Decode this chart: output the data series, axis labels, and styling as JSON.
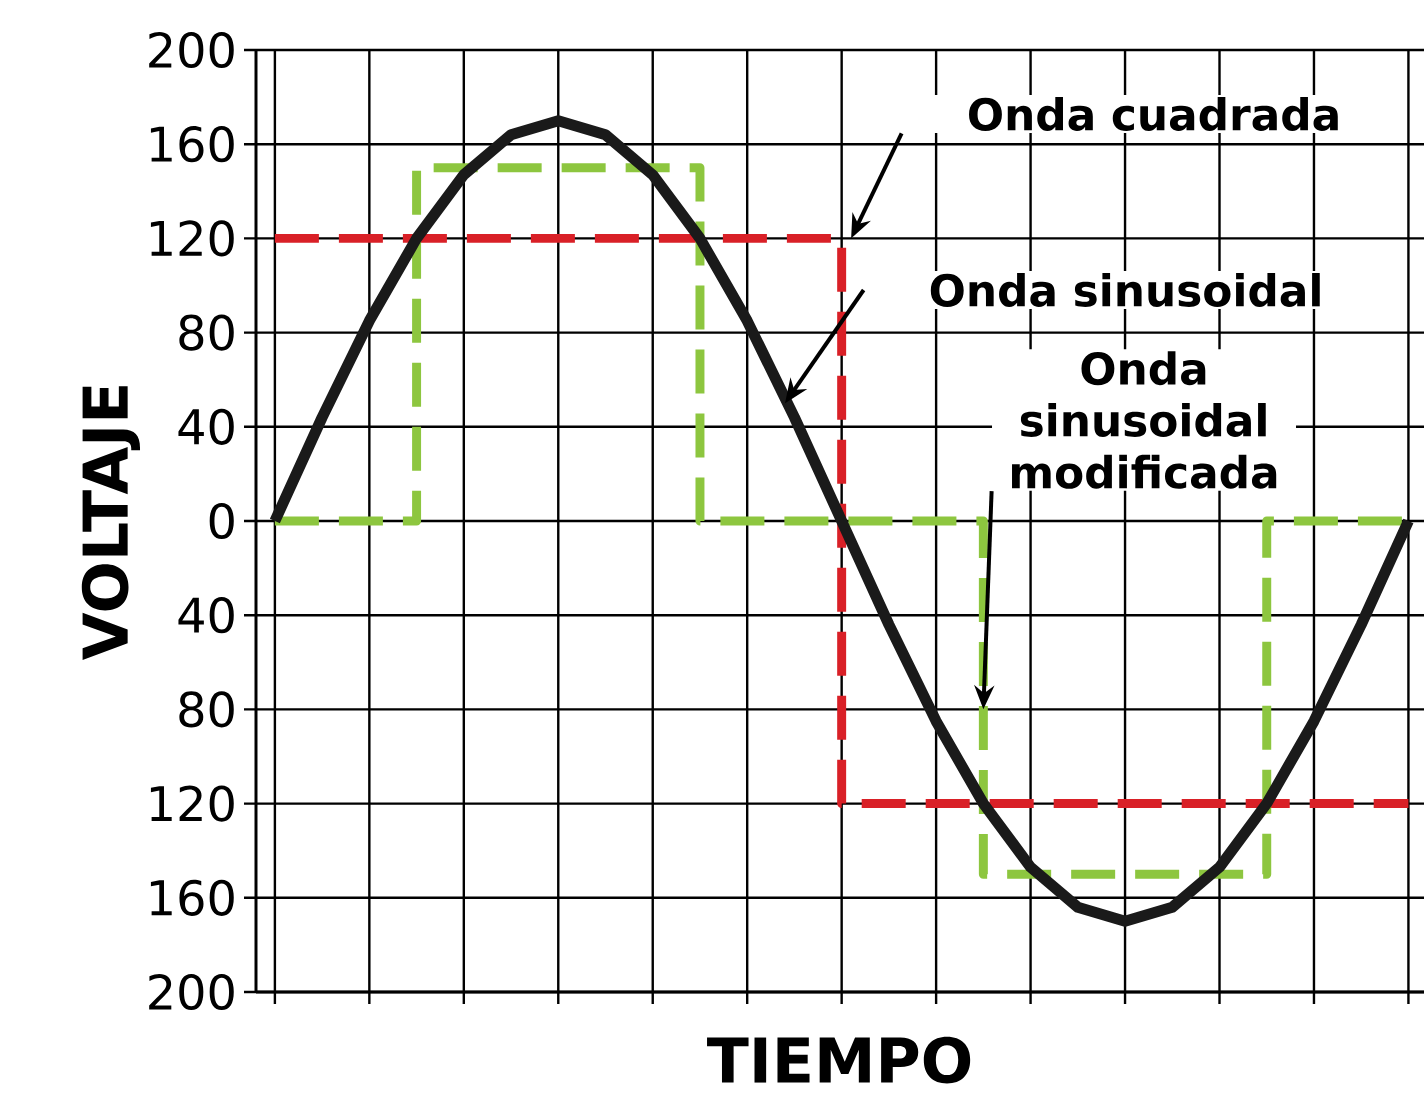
{
  "chart_data": {
    "type": "line",
    "xlabel": "TIEMPO",
    "ylabel": "VOLTAJE",
    "categories": [
      null,
      null,
      null,
      null,
      null,
      null,
      null,
      null,
      null,
      null,
      null,
      null,
      null,
      null,
      null,
      null,
      null,
      null,
      null,
      null,
      null,
      null,
      null,
      null,
      null
    ],
    "ylim": [
      -200,
      200
    ],
    "yticks": [
      {
        "value": -200,
        "label": "200"
      },
      {
        "value": -160,
        "label": "160"
      },
      {
        "value": -120,
        "label": "120"
      },
      {
        "value": -80,
        "label": "80"
      },
      {
        "value": -40,
        "label": "40"
      },
      0,
      40,
      80,
      120,
      160,
      200
    ],
    "grid": true,
    "series": [
      {
        "type": "step",
        "color": "#d92027",
        "line_style": "dashed",
        "values": [
          120,
          120,
          120,
          120,
          120,
          120,
          120,
          120,
          120,
          120,
          120,
          120,
          -120,
          -120,
          -120,
          -120,
          -120,
          -120,
          -120,
          -120,
          -120,
          -120,
          -120,
          -120,
          -120
        ]
      },
      {
        "type": "step",
        "color": "#8dc63f",
        "line_style": "dashed",
        "values": [
          0,
          0,
          0,
          150,
          150,
          150,
          150,
          150,
          150,
          0,
          0,
          0,
          0,
          0,
          0,
          -150,
          -150,
          -150,
          -150,
          -150,
          -150,
          0,
          0,
          0,
          0
        ]
      },
      {
        "color": "#1a1a1a",
        "line_style": "solid",
        "values": [
          0,
          44,
          85,
          120,
          147,
          164,
          170,
          164,
          147,
          120,
          85,
          44,
          0,
          -44,
          -85,
          -120,
          -147,
          -164,
          -170,
          -164,
          -147,
          -120,
          -85,
          -44,
          0
        ]
      }
    ],
    "annotations": [
      "Onda cuadrada",
      "Onda sinusoidal",
      "Onda sinusoidal modificada"
    ]
  }
}
